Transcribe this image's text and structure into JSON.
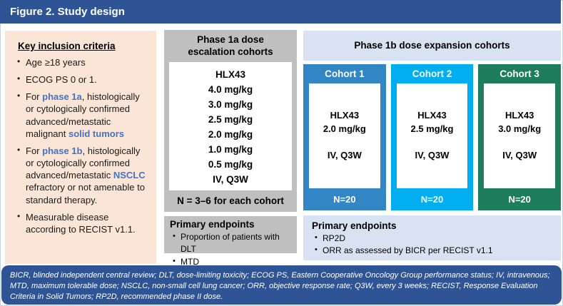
{
  "title": "Figure 2. Study design",
  "colors": {
    "title_bar": "#2F5496",
    "footnote_bar": "#2F5496",
    "inclusion_panel": "#FBE5D6",
    "phase1a_panel": "#BFBFBF",
    "phase1b_panel": "#D9E2F3",
    "accent_text": "#4472C4",
    "cohort1": "#3186C3",
    "cohort2": "#00AEEF",
    "cohort3": "#1E7D5C"
  },
  "inclusion": {
    "heading": "Key inclusion criteria",
    "bullets": [
      {
        "segments": [
          {
            "text": "Age ≥18 years",
            "accent": false
          }
        ]
      },
      {
        "segments": [
          {
            "text": "ECOG PS 0 or 1.",
            "accent": false
          }
        ]
      },
      {
        "segments": [
          {
            "text": "For ",
            "accent": false
          },
          {
            "text": "phase 1a",
            "accent": true
          },
          {
            "text": ", histologically or cytologically confirmed advanced/metastatic malignant ",
            "accent": false
          },
          {
            "text": "solid tumors",
            "accent": true
          }
        ]
      },
      {
        "segments": [
          {
            "text": "For ",
            "accent": false
          },
          {
            "text": "phase 1b",
            "accent": true
          },
          {
            "text": ", histologically or cytologically confirmed advanced/metastatic ",
            "accent": false
          },
          {
            "text": "NSCLC",
            "accent": true
          },
          {
            "text": " refractory or not amenable to standard therapy.",
            "accent": false
          }
        ]
      },
      {
        "segments": [
          {
            "text": "Measurable disease according to RECIST v1.1.",
            "accent": false
          }
        ]
      }
    ]
  },
  "phase1a": {
    "header": "Phase 1a dose escalation cohorts",
    "doses": [
      "HLX43",
      "4.0 mg/kg",
      "3.0 mg/kg",
      "2.5 mg/kg",
      "2.0 mg/kg",
      "1.0 mg/kg",
      "0.5 mg/kg",
      "IV, Q3W"
    ],
    "cohort_note": "N = 3–6 for each cohort",
    "endpoints": {
      "heading": "Primary endpoints",
      "items": [
        "Proportion of patients with DLT",
        "MTD"
      ]
    }
  },
  "phase1b": {
    "header": "Phase 1b dose expansion cohorts",
    "cohorts": [
      {
        "label": "Cohort 1",
        "drug": "HLX43",
        "dose": "2.0 mg/kg",
        "schedule": "IV, Q3W",
        "n": "N=20",
        "color": "#3186C3"
      },
      {
        "label": "Cohort 2",
        "drug": "HLX43",
        "dose": "2.5 mg/kg",
        "schedule": "IV, Q3W",
        "n": "N=20",
        "color": "#00AEEF"
      },
      {
        "label": "Cohort 3",
        "drug": "HLX43",
        "dose": "3.0 mg/kg",
        "schedule": "IV, Q3W",
        "n": "N=20",
        "color": "#1E7D5C"
      }
    ],
    "endpoints": {
      "heading": "Primary endpoints",
      "items": [
        "RP2D",
        "ORR as assessed by BICR per RECIST v1.1"
      ]
    }
  },
  "footnote": "BICR, blinded independent central review; DLT, dose-limiting toxicity; ECOG PS, Eastern Cooperative Oncology Group performance status; IV, intravenous; MTD, maximum tolerable dose; NSCLC, non-small cell lung cancer; ORR, objective response rate; Q3W, every 3 weeks; RECIST, Response Evaluation Criteria in Solid Tumors; RP2D, recommended phase II dose."
}
